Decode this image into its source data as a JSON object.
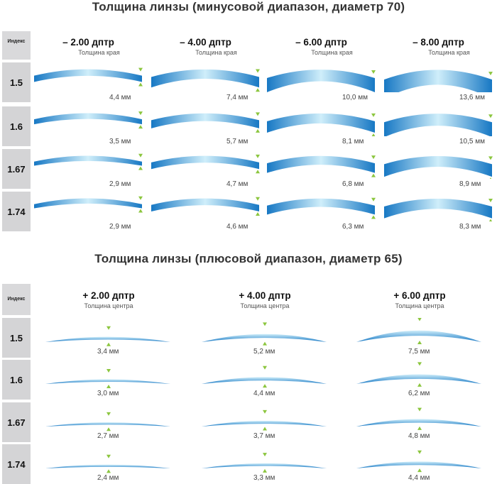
{
  "minus": {
    "title": "Толщина линзы (минусовой диапазон, диаметр 70)",
    "index_header": "Индекс",
    "indices": [
      "1.5",
      "1.6",
      "1.67",
      "1.74"
    ],
    "columns": [
      {
        "diopter": "– 2.00 дптр",
        "subtitle": "Толщина края",
        "values": [
          "4,4 мм",
          "3,5 мм",
          "2,9 мм",
          "2,9 мм"
        ],
        "edge_mm": [
          4.4,
          3.5,
          2.9,
          2.9
        ]
      },
      {
        "diopter": "– 4.00 дптр",
        "subtitle": "Толщина края",
        "values": [
          "7,4 мм",
          "5,7 мм",
          "4,7 мм",
          "4,6 мм"
        ],
        "edge_mm": [
          7.4,
          5.7,
          4.7,
          4.6
        ]
      },
      {
        "diopter": "– 6.00 дптр",
        "subtitle": "Толщина края",
        "values": [
          "10,0 мм",
          "8,1 мм",
          "6,8 мм",
          "6,3 мм"
        ],
        "edge_mm": [
          10.0,
          8.1,
          6.8,
          6.3
        ]
      },
      {
        "diopter": "– 8.00 дптр",
        "subtitle": "Толщина края",
        "values": [
          "13,6 мм",
          "10,5 мм",
          "8,9 мм",
          "8,3 мм"
        ],
        "edge_mm": [
          13.6,
          10.5,
          8.9,
          8.3
        ]
      }
    ]
  },
  "plus": {
    "title": "Толщина линзы (плюсовой диапазон, диаметр 65)",
    "index_header": "Индекс",
    "indices": [
      "1.5",
      "1.6",
      "1.67",
      "1.74"
    ],
    "columns": [
      {
        "diopter": "+ 2.00 дптр",
        "subtitle": "Толщина центра",
        "values": [
          "3,4 мм",
          "3,0 мм",
          "2,7 мм",
          "2,4 мм"
        ],
        "center_mm": [
          3.4,
          3.0,
          2.7,
          2.4
        ]
      },
      {
        "diopter": "+ 4.00 дптр",
        "subtitle": "Толщина центра",
        "values": [
          "5,2 мм",
          "4,4 мм",
          "3,7 мм",
          "3,3 мм"
        ],
        "center_mm": [
          5.2,
          4.4,
          3.7,
          3.3
        ]
      },
      {
        "diopter": "+ 6.00 дптр",
        "subtitle": "Толщина центра",
        "values": [
          "7,5 мм",
          "6,2 мм",
          "4,8 мм",
          "4,4 мм"
        ],
        "center_mm": [
          7.5,
          6.2,
          4.8,
          4.4
        ]
      }
    ]
  },
  "colors": {
    "lens_dark": "#1778c4",
    "lens_light": "#cfeefa",
    "marker": "#8cc63f",
    "index_bg": "#d4d4d6"
  }
}
